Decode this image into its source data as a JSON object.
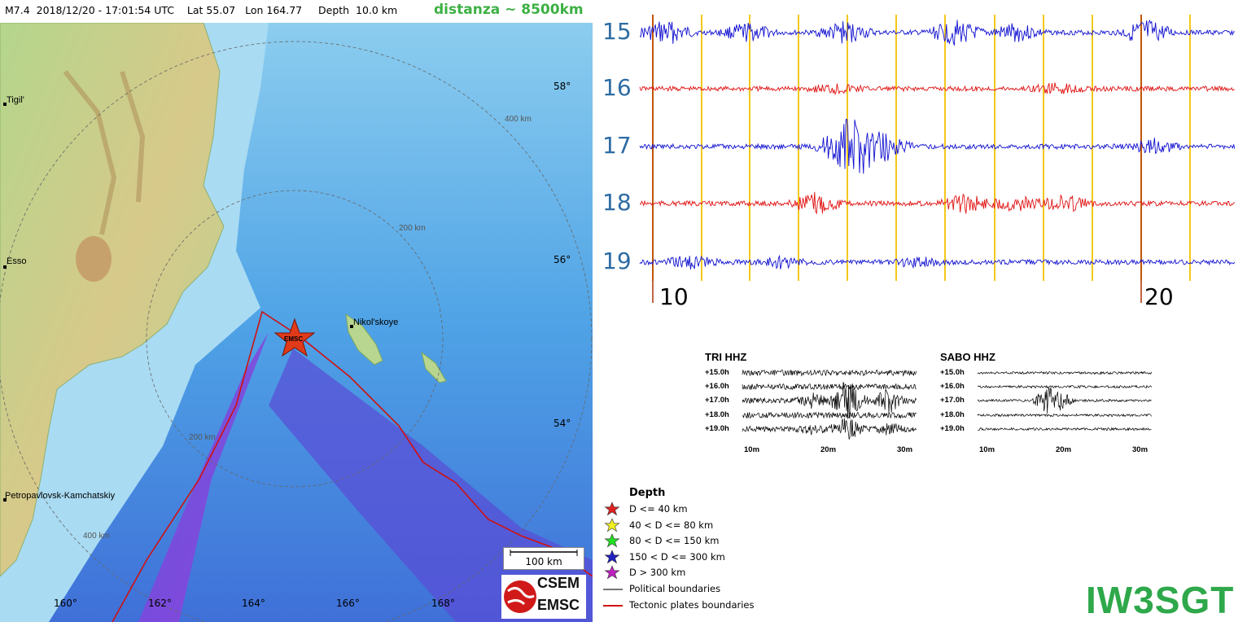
{
  "header": {
    "event_info": "M7.4  2018/12/20 - 17:01:54 UTC    Lat 55.07   Lon 164.77     Depth  10.0 km",
    "distance": "distanza ~ 8500km"
  },
  "map": {
    "places": [
      "Tigil'",
      "Esso",
      "Petropavlovsk-Kamchatskiy",
      "Nikol'skoye"
    ],
    "lat_labels": [
      "58°",
      "56°",
      "54°"
    ],
    "lon_labels": [
      "160°",
      "162°",
      "164°",
      "166°",
      "168°"
    ],
    "ring_labels": [
      "400 km",
      "200 km",
      "200 km",
      "400 km"
    ],
    "epicenter_label": "EMSC",
    "scale": "100 km",
    "logo": {
      "top": "CSEM",
      "bottom": "EMSC"
    }
  },
  "legend": {
    "title": "Depth",
    "items": [
      {
        "label": "D <= 40 km",
        "color": "#e02020",
        "kind": "star"
      },
      {
        "label": "40 < D <= 80 km",
        "color": "#f0f020",
        "kind": "star"
      },
      {
        "label": "80 < D <= 150 km",
        "color": "#20e020",
        "kind": "star"
      },
      {
        "label": "150 < D <= 300 km",
        "color": "#2020c0",
        "kind": "star"
      },
      {
        "label": "D > 300 km",
        "color": "#c020c0",
        "kind": "star"
      },
      {
        "label": "Political boundaries",
        "color": "#777777",
        "kind": "line"
      },
      {
        "label": "Tectonic plates boundaries",
        "color": "#d01010",
        "kind": "line"
      }
    ]
  },
  "seismogram": {
    "hours": [
      "15",
      "16",
      "17",
      "18",
      "19"
    ],
    "trace_colors": [
      "#1010d0",
      "#e01010",
      "#1010d0",
      "#e01010",
      "#1010d0"
    ],
    "time_labels": [
      "10",
      "20"
    ],
    "minute_line_color": "#f2c81a",
    "marker_line_color": "#b03000"
  },
  "mini_panels": [
    {
      "title": "TRI HHZ",
      "rows": [
        "+15.0h",
        "+16.0h",
        "+17.0h",
        "+18.0h",
        "+19.0h"
      ],
      "xticks": [
        "10m",
        "20m",
        "30m"
      ]
    },
    {
      "title": "SABO HHZ",
      "rows": [
        "+15.0h",
        "+16.0h",
        "+17.0h",
        "+18.0h",
        "+19.0h"
      ],
      "xticks": [
        "10m",
        "20m",
        "30m"
      ]
    }
  ],
  "callsign": "IW3SGT"
}
